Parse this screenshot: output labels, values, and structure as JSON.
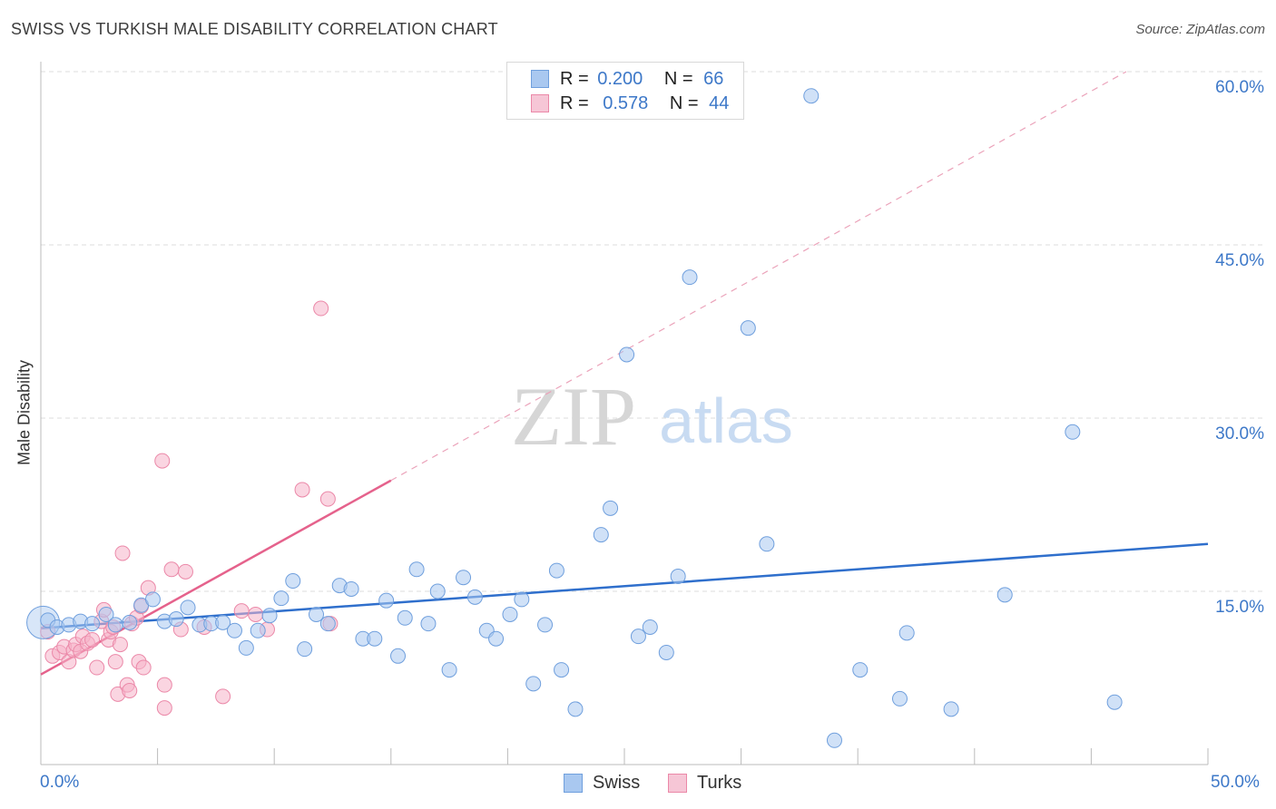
{
  "title": "SWISS VS TURKISH MALE DISABILITY CORRELATION CHART",
  "source": "Source: ZipAtlas.com",
  "watermark": {
    "zip": "ZIP",
    "atlas": "atlas"
  },
  "colors": {
    "swiss_fill": "#a9c8f0",
    "swiss_stroke": "#6f9fdd",
    "swiss_line": "#2f6fcc",
    "turks_fill": "#f6b3c8",
    "turks_stroke": "#eb88a8",
    "turks_line": "#e5628c",
    "tick_label": "#3d78c8",
    "grid": "#dddddd"
  },
  "legend": {
    "rows": [
      {
        "r_label": "R =",
        "r_value": "0.200",
        "n_label": "N =",
        "n_value": "66"
      },
      {
        "r_label": "R =",
        "r_value": "0.578",
        "n_label": "N =",
        "n_value": "44"
      }
    ]
  },
  "bottom_legend": {
    "swiss": "Swiss",
    "turks": "Turks"
  },
  "chart_data": {
    "type": "scatter",
    "title": "SWISS VS TURKISH MALE DISABILITY CORRELATION CHART",
    "xlabel": "",
    "ylabel": "Male Disability",
    "xlim": [
      0,
      50
    ],
    "ylim": [
      0,
      60
    ],
    "x_tick_labels": [
      "0.0%",
      "50.0%"
    ],
    "y_tick_labels": [
      "15.0%",
      "30.0%",
      "45.0%",
      "60.0%"
    ],
    "y_ticks": [
      15,
      30,
      45,
      60
    ],
    "grid": true,
    "legend_position": "top-center",
    "series": [
      {
        "name": "Swiss",
        "R": 0.2,
        "N": 66,
        "trend": {
          "x": [
            0,
            50
          ],
          "y": [
            11.8,
            19.1
          ],
          "style": "solid"
        },
        "points": [
          [
            0.3,
            12.5
          ],
          [
            0.7,
            11.9
          ],
          [
            1.2,
            12.1
          ],
          [
            1.7,
            12.4
          ],
          [
            2.2,
            12.2
          ],
          [
            2.8,
            13.0
          ],
          [
            3.2,
            12.1
          ],
          [
            3.8,
            12.3
          ],
          [
            4.3,
            13.8
          ],
          [
            4.8,
            14.3
          ],
          [
            5.3,
            12.4
          ],
          [
            5.8,
            12.6
          ],
          [
            6.3,
            13.6
          ],
          [
            6.8,
            12.1
          ],
          [
            7.3,
            12.2
          ],
          [
            7.8,
            12.3
          ],
          [
            8.3,
            11.6
          ],
          [
            8.8,
            10.1
          ],
          [
            9.3,
            11.6
          ],
          [
            9.8,
            12.9
          ],
          [
            10.3,
            14.4
          ],
          [
            10.8,
            15.9
          ],
          [
            11.3,
            10.0
          ],
          [
            11.8,
            13.0
          ],
          [
            12.3,
            12.2
          ],
          [
            12.8,
            15.5
          ],
          [
            13.3,
            15.2
          ],
          [
            13.8,
            10.9
          ],
          [
            14.3,
            10.9
          ],
          [
            14.8,
            14.2
          ],
          [
            15.3,
            9.4
          ],
          [
            15.6,
            12.7
          ],
          [
            16.1,
            16.9
          ],
          [
            16.6,
            12.2
          ],
          [
            17.0,
            15.0
          ],
          [
            17.5,
            8.2
          ],
          [
            18.1,
            16.2
          ],
          [
            18.6,
            14.5
          ],
          [
            19.1,
            11.6
          ],
          [
            19.5,
            10.9
          ],
          [
            20.1,
            13.0
          ],
          [
            20.6,
            14.3
          ],
          [
            21.1,
            7.0
          ],
          [
            21.6,
            12.1
          ],
          [
            22.1,
            16.8
          ],
          [
            22.3,
            8.2
          ],
          [
            22.9,
            4.8
          ],
          [
            24.0,
            19.9
          ],
          [
            24.4,
            22.2
          ],
          [
            25.1,
            35.5
          ],
          [
            25.6,
            11.1
          ],
          [
            26.1,
            11.9
          ],
          [
            26.8,
            9.7
          ],
          [
            27.3,
            16.3
          ],
          [
            27.8,
            42.2
          ],
          [
            30.3,
            37.8
          ],
          [
            31.1,
            19.1
          ],
          [
            33.0,
            57.9
          ],
          [
            34.0,
            2.1
          ],
          [
            35.1,
            8.2
          ],
          [
            36.8,
            5.7
          ],
          [
            37.1,
            11.4
          ],
          [
            39.0,
            4.8
          ],
          [
            41.3,
            14.7
          ],
          [
            44.2,
            28.8
          ],
          [
            46.0,
            5.4
          ]
        ]
      },
      {
        "name": "Turks",
        "R": 0.578,
        "N": 44,
        "trend": {
          "x": [
            0,
            15
          ],
          "y": [
            7.8,
            24.6
          ],
          "style": "solid"
        },
        "trend_extension": {
          "x": [
            15,
            46.5
          ],
          "y": [
            24.6,
            60.0
          ],
          "style": "dashed"
        },
        "points": [
          [
            0.3,
            11.5
          ],
          [
            0.5,
            9.4
          ],
          [
            0.8,
            9.7
          ],
          [
            1.0,
            10.2
          ],
          [
            1.2,
            8.9
          ],
          [
            1.4,
            9.9
          ],
          [
            1.5,
            10.4
          ],
          [
            1.7,
            9.8
          ],
          [
            1.8,
            11.1
          ],
          [
            2.0,
            10.5
          ],
          [
            2.2,
            10.8
          ],
          [
            2.4,
            8.4
          ],
          [
            2.6,
            12.4
          ],
          [
            2.7,
            13.4
          ],
          [
            2.9,
            10.8
          ],
          [
            3.0,
            11.5
          ],
          [
            3.1,
            11.9
          ],
          [
            3.2,
            8.9
          ],
          [
            3.3,
            6.1
          ],
          [
            3.4,
            10.4
          ],
          [
            3.5,
            18.3
          ],
          [
            3.7,
            6.9
          ],
          [
            3.8,
            6.4
          ],
          [
            3.9,
            12.2
          ],
          [
            4.1,
            12.7
          ],
          [
            4.2,
            8.9
          ],
          [
            4.3,
            13.7
          ],
          [
            4.4,
            8.4
          ],
          [
            4.6,
            15.3
          ],
          [
            5.2,
            26.3
          ],
          [
            5.3,
            4.9
          ],
          [
            5.3,
            6.9
          ],
          [
            5.6,
            16.9
          ],
          [
            6.0,
            11.7
          ],
          [
            6.2,
            16.7
          ],
          [
            7.0,
            11.9
          ],
          [
            7.8,
            5.9
          ],
          [
            8.6,
            13.3
          ],
          [
            9.2,
            13.0
          ],
          [
            9.7,
            11.7
          ],
          [
            11.2,
            23.8
          ],
          [
            12.0,
            39.5
          ],
          [
            12.3,
            23.0
          ],
          [
            12.4,
            12.2
          ]
        ]
      }
    ]
  }
}
